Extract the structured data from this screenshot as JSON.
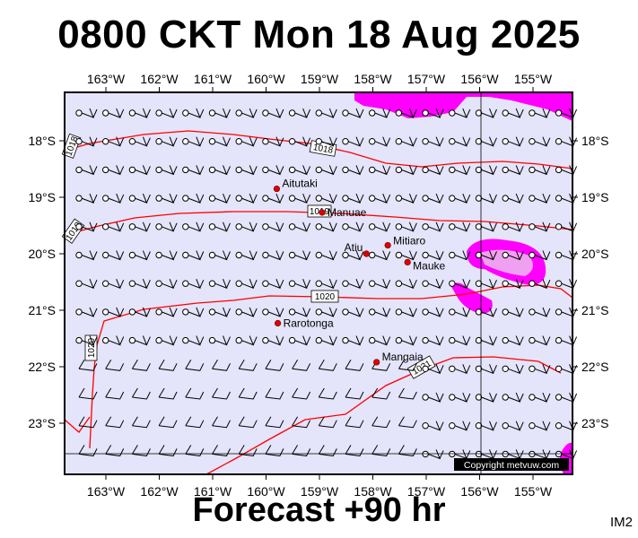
{
  "title": "0800 CKT Mon 18 Aug 2025",
  "subtitle": "Forecast +90 hr",
  "image_code": "IM2",
  "copyright": "Copyright metvuw.com",
  "colors": {
    "background": "#e4e4fa",
    "isobar": "#ff0000",
    "rain_light": "#ff00ff",
    "rain_heavy": "#f0a0f0",
    "island": "#dd0000"
  },
  "lon_ticks": [
    "163°W",
    "162°W",
    "161°W",
    "160°W",
    "159°W",
    "158°W",
    "157°W",
    "156°W",
    "155°W"
  ],
  "lat_ticks": [
    "18°S",
    "19°S",
    "20°S",
    "21°S",
    "22°S",
    "23°S"
  ],
  "isobar_labels": [
    "1018",
    "1018",
    "1019",
    "1019",
    "1020",
    "1020",
    "1021"
  ],
  "islands": [
    {
      "name": "Aitutaki",
      "lon": -159.8,
      "lat": -18.85
    },
    {
      "name": "Manuae",
      "lon": -158.95,
      "lat": -19.27
    },
    {
      "name": "Atiu",
      "lon": -158.12,
      "lat": -20.0
    },
    {
      "name": "Mitiaro",
      "lon": -157.72,
      "lat": -19.85
    },
    {
      "name": "Mauke",
      "lon": -157.35,
      "lat": -20.15
    },
    {
      "name": "Rarotonga",
      "lon": -159.78,
      "lat": -21.23
    },
    {
      "name": "Mangaia",
      "lon": -157.93,
      "lat": -21.92
    }
  ]
}
